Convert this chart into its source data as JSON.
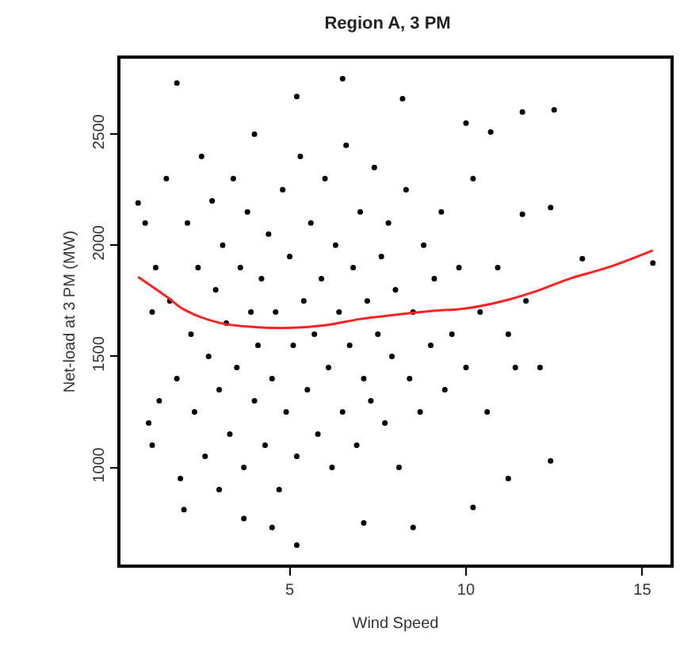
{
  "chart_data": {
    "type": "scatter",
    "title": "Region A, 3 PM",
    "xlabel": "Wind Speed",
    "ylabel": "Net-load at 3 PM (MW)",
    "xlim": [
      0.2,
      15.8
    ],
    "ylim": [
      563,
      2840
    ],
    "xticks": [
      5,
      10,
      15
    ],
    "yticks": [
      1000,
      1500,
      2000,
      2500
    ],
    "series": [
      {
        "marker": "circle",
        "color": "#000000",
        "x": [
          1.8,
          6.5,
          5.2,
          8.2,
          12.5,
          11.6,
          10.0,
          10.7,
          15.3,
          12.4,
          11.2,
          10.2,
          8.5,
          5.2,
          4.5,
          7.1,
          3.7,
          2.0,
          0.7,
          1.1,
          1.0,
          13.3,
          11.6,
          12.4,
          11.4,
          1.5,
          1.6,
          1.8,
          1.9,
          2.1,
          2.2,
          2.3,
          2.4,
          2.5,
          2.6,
          2.7,
          2.8,
          2.9,
          3.0,
          3.0,
          3.1,
          3.2,
          3.3,
          3.4,
          3.5,
          3.6,
          3.7,
          3.8,
          3.9,
          4.0,
          4.0,
          4.1,
          4.2,
          4.3,
          4.4,
          4.5,
          4.6,
          4.7,
          4.8,
          4.9,
          5.0,
          5.1,
          5.2,
          5.3,
          5.4,
          5.5,
          5.6,
          5.7,
          5.8,
          5.9,
          6.0,
          6.1,
          6.2,
          6.3,
          6.4,
          6.5,
          6.6,
          6.7,
          6.8,
          6.9,
          7.0,
          7.1,
          7.2,
          7.3,
          7.4,
          7.5,
          7.6,
          7.7,
          7.8,
          7.9,
          8.0,
          8.1,
          8.3,
          8.4,
          8.5,
          8.7,
          8.8,
          9.0,
          9.1,
          9.3,
          9.4,
          9.6,
          9.8,
          10.0,
          10.2,
          10.4,
          10.6,
          10.9,
          11.2,
          11.7,
          12.1,
          1.2,
          1.3,
          0.9,
          1.1
        ],
        "values": [
          2730,
          2750,
          2670,
          2660,
          2610,
          2600,
          2550,
          2510,
          1920,
          1030,
          950,
          820,
          730,
          650,
          730,
          750,
          770,
          810,
          2190,
          1100,
          1200,
          1940,
          2140,
          2170,
          1450,
          2300,
          1750,
          1400,
          950,
          2100,
          1600,
          1250,
          1900,
          2400,
          1050,
          1500,
          2200,
          1800,
          1350,
          900,
          2000,
          1650,
          1150,
          2300,
          1450,
          1900,
          1000,
          2150,
          1700,
          1300,
          2500,
          1550,
          1850,
          1100,
          2050,
          1400,
          1700,
          900,
          2250,
          1250,
          1950,
          1550,
          1050,
          2400,
          1750,
          1350,
          2100,
          1600,
          1150,
          1850,
          2300,
          1450,
          1000,
          2000,
          1700,
          1250,
          2450,
          1550,
          1900,
          1100,
          2150,
          1400,
          1750,
          1300,
          2350,
          1600,
          1950,
          1200,
          2100,
          1500,
          1800,
          1000,
          2250,
          1400,
          1700,
          1250,
          2000,
          1550,
          1850,
          2150,
          1350,
          1600,
          1900,
          1450,
          2300,
          1700,
          1250,
          1900,
          1600,
          1750,
          1450,
          1900,
          1300,
          2100,
          1700
        ]
      },
      {
        "type": "line",
        "marker": "none",
        "color": "#ff2020",
        "x": [
          0.7,
          1.5,
          2,
          3,
          4,
          5,
          6,
          7,
          8,
          9,
          10,
          11,
          12,
          13,
          14,
          15.3
        ],
        "values": [
          1858,
          1770,
          1711,
          1651,
          1632,
          1628,
          1640,
          1668,
          1687,
          1704,
          1716,
          1747,
          1794,
          1853,
          1899,
          1977
        ]
      }
    ]
  }
}
